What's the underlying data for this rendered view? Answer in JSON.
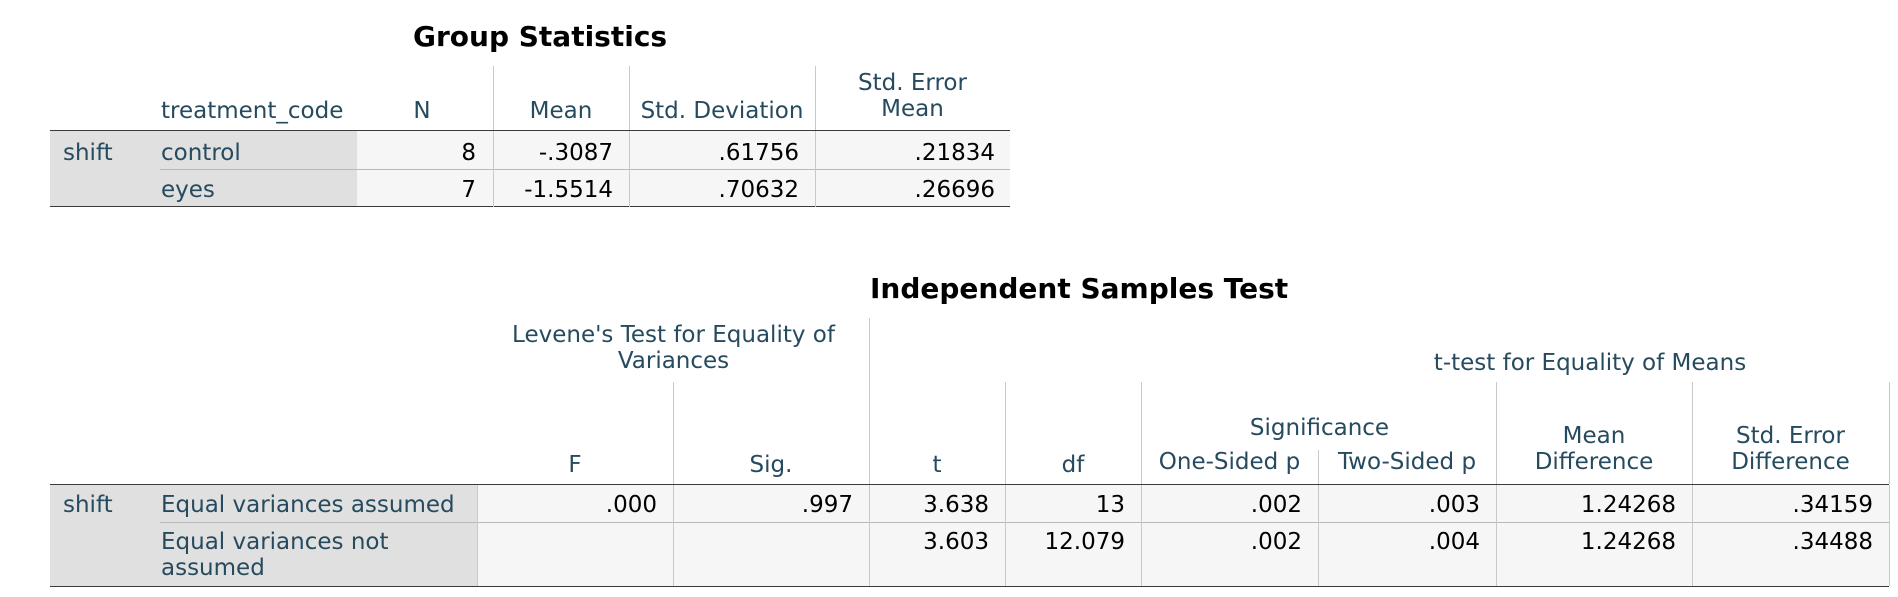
{
  "group_stats": {
    "title": "Group Statistics",
    "headers": {
      "grouping": "treatment_code",
      "n": "N",
      "mean": "Mean",
      "sd": "Std. Deviation",
      "se_line1": "Std. Error",
      "se_line2": "Mean"
    },
    "variable": "shift",
    "rows": [
      {
        "group": "control",
        "n": "8",
        "mean": "-.3087",
        "sd": ".61756",
        "se": ".21834"
      },
      {
        "group": "eyes",
        "n": "7",
        "mean": "-1.5514",
        "sd": ".70632",
        "se": ".26696"
      }
    ]
  },
  "ind_test": {
    "title": "Independent Samples Test",
    "levene_line1": "Levene's Test for Equality of",
    "levene_line2": "Variances",
    "ttest_header": "t-test for Equality of Means",
    "significance": "Significance",
    "headers": {
      "f": "F",
      "sig": "Sig.",
      "t": "t",
      "df": "df",
      "one_sided": "One-Sided p",
      "two_sided": "Two-Sided p",
      "md_line1": "Mean",
      "md_line2": "Difference",
      "sed_line1": "Std. Error",
      "sed_line2": "Difference"
    },
    "variable": "shift",
    "rows": [
      {
        "label_line1": "Equal variances assumed",
        "label_line2": "",
        "f": ".000",
        "sig": ".997",
        "t": "3.638",
        "df": "13",
        "one_sided": ".002",
        "two_sided": ".003",
        "md": "1.24268",
        "sed": ".34159"
      },
      {
        "label_line1": "Equal variances not",
        "label_line2": "assumed",
        "f": "",
        "sig": "",
        "t": "3.603",
        "df": "12.079",
        "one_sided": ".002",
        "two_sided": ".004",
        "md": "1.24268",
        "sed": ".34488"
      }
    ]
  }
}
